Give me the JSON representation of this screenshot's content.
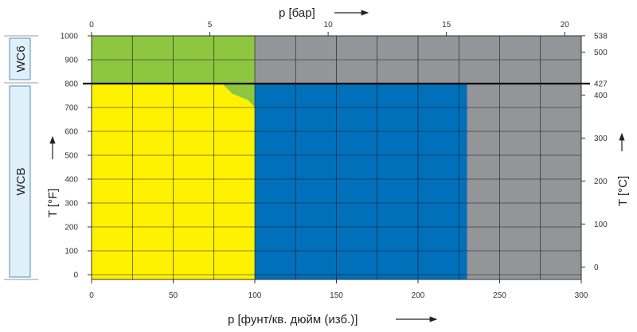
{
  "chart_data": {
    "type": "area",
    "title": "",
    "axes": {
      "bottom": {
        "label": "p [фунт/кв. дюйм (изб.)]",
        "range": [
          0,
          300
        ],
        "ticks": [
          {
            "value": 0,
            "label": "0"
          },
          {
            "value": 50,
            "label": "50"
          },
          {
            "value": 100,
            "label": "100"
          },
          {
            "value": 150,
            "label": "150"
          },
          {
            "value": 200,
            "label": "200"
          },
          {
            "value": 250,
            "label": "250"
          },
          {
            "value": 300,
            "label": "300"
          }
        ]
      },
      "top": {
        "label": "p [бар]",
        "range_bar": [
          0,
          20.7
        ],
        "ticks": [
          {
            "value": 0,
            "label": "0"
          },
          {
            "value": 5,
            "label": "5"
          },
          {
            "value": 10,
            "label": "10"
          },
          {
            "value": 15,
            "label": "15"
          },
          {
            "value": 20,
            "label": "20"
          }
        ]
      },
      "left": {
        "label": "T [°F]",
        "range": [
          -20,
          1000
        ],
        "ticks": [
          {
            "value": 0,
            "label": "0"
          },
          {
            "value": 100,
            "label": "100"
          },
          {
            "value": 200,
            "label": "200"
          },
          {
            "value": 300,
            "label": "300"
          },
          {
            "value": 400,
            "label": "400"
          },
          {
            "value": 500,
            "label": "500"
          },
          {
            "value": 600,
            "label": "600"
          },
          {
            "value": 700,
            "label": "700"
          },
          {
            "value": 800,
            "label": "800"
          },
          {
            "value": 900,
            "label": "900"
          },
          {
            "value": 1000,
            "label": "1000"
          }
        ]
      },
      "right": {
        "label": "T [°C]",
        "ticks": [
          {
            "value": 0,
            "label": "0"
          },
          {
            "value": 100,
            "label": "100"
          },
          {
            "value": 200,
            "label": "200"
          },
          {
            "value": 300,
            "label": "300"
          },
          {
            "value": 400,
            "label": "400"
          },
          {
            "value": 427,
            "label": "427"
          },
          {
            "value": 500,
            "label": "500"
          },
          {
            "value": 538,
            "label": "538"
          }
        ]
      }
    },
    "grid": true,
    "grid_x": [
      0,
      25,
      50,
      75,
      100,
      125,
      150,
      175,
      200,
      225,
      250,
      275,
      300
    ],
    "grid_y": [
      0,
      100,
      200,
      300,
      400,
      500,
      600,
      700,
      800,
      900,
      1000
    ],
    "regions": [
      {
        "id": "green",
        "color": "#8dc63f",
        "points": [
          [
            0,
            800
          ],
          [
            0,
            1000
          ],
          [
            100,
            1000
          ],
          [
            100,
            700
          ],
          [
            96,
            730
          ],
          [
            86,
            758
          ],
          [
            80,
            800
          ]
        ]
      },
      {
        "id": "green-upper",
        "color": "#8dc63f",
        "points": [
          [
            0,
            800
          ],
          [
            100,
            800
          ],
          [
            100,
            1000
          ],
          [
            0,
            1000
          ]
        ]
      },
      {
        "id": "gray-top",
        "color": "#939598",
        "points": [
          [
            100,
            800
          ],
          [
            300,
            800
          ],
          [
            300,
            1000
          ],
          [
            100,
            1000
          ]
        ]
      },
      {
        "id": "yellow",
        "color": "#fff200",
        "points": [
          [
            0,
            -20
          ],
          [
            100,
            -20
          ],
          [
            100,
            700
          ],
          [
            96,
            730
          ],
          [
            86,
            758
          ],
          [
            80,
            800
          ],
          [
            0,
            800
          ]
        ]
      },
      {
        "id": "blue",
        "color": "#0070bb",
        "points": [
          [
            100,
            -20
          ],
          [
            230,
            -20
          ],
          [
            230,
            800
          ],
          [
            100,
            800
          ]
        ]
      },
      {
        "id": "gray-right",
        "color": "#939598",
        "points": [
          [
            230,
            -20
          ],
          [
            300,
            -20
          ],
          [
            300,
            800
          ],
          [
            230,
            800
          ]
        ]
      }
    ],
    "divider_temperature_f": 800,
    "materials": [
      {
        "label": "WC6",
        "range_f": [
          800,
          1000
        ]
      },
      {
        "label": "WCB",
        "range_f": [
          -20,
          800
        ]
      }
    ]
  }
}
